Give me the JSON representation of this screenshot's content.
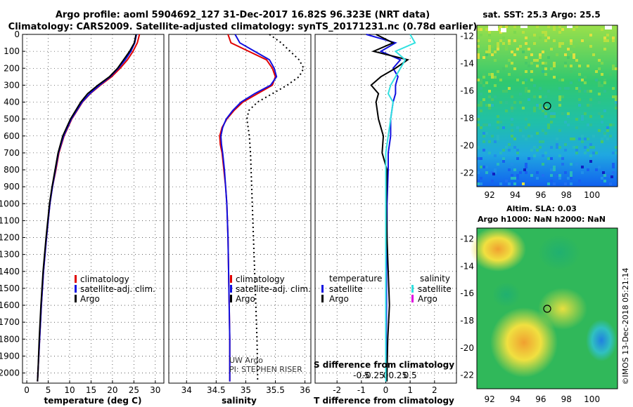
{
  "header": {
    "line1": "Argo profile: aoml 5904692_127 31-Dec-2017 16.82S 96.323E (NRT data)",
    "line2": "Climatology: CARS2009. Satellite-adjusted climatology: synTS_20171231.nc (0.78d earlier)"
  },
  "colors": {
    "climatology": "#e00000",
    "satellite": "#1010e0",
    "argo": "#000000",
    "satellite_salinity": "#30e0e0",
    "argo_salinity": "#e000e0"
  },
  "chart_data": [
    {
      "id": "temperature",
      "type": "line",
      "xlabel": "temperature (deg C)",
      "ylabel": "",
      "xlim": [
        -1,
        32
      ],
      "ylim": [
        2060,
        0
      ],
      "xticks": [
        "0",
        "5",
        "10",
        "15",
        "20",
        "25",
        "30"
      ],
      "yticks": [
        "0",
        "100",
        "200",
        "300",
        "400",
        "500",
        "600",
        "700",
        "800",
        "900",
        "1000",
        "1100",
        "1200",
        "1300",
        "1400",
        "1500",
        "1600",
        "1700",
        "1800",
        "1900",
        "2000"
      ],
      "depth": [
        0,
        50,
        100,
        150,
        200,
        250,
        300,
        350,
        400,
        500,
        600,
        700,
        800,
        900,
        1000,
        1200,
        1400,
        1600,
        1800,
        2000,
        2050
      ],
      "series": [
        {
          "name": "climatology",
          "values": [
            26.3,
            25.8,
            24.8,
            23.5,
            21.8,
            19.8,
            17.2,
            14.8,
            13.0,
            10.5,
            8.7,
            7.5,
            6.8,
            6.0,
            5.4,
            4.6,
            3.9,
            3.4,
            3.0,
            2.6,
            2.5
          ]
        },
        {
          "name": "satellite-adj. clim.",
          "values": [
            25.6,
            25.2,
            24.3,
            23.0,
            21.4,
            19.5,
            17.0,
            14.7,
            12.9,
            10.4,
            8.6,
            7.4,
            6.7,
            6.0,
            5.4,
            4.6,
            3.9,
            3.4,
            3.0,
            2.6,
            2.5
          ]
        },
        {
          "name": "Argo",
          "values": [
            25.5,
            25.1,
            24.0,
            22.6,
            21.2,
            19.3,
            16.6,
            14.2,
            12.6,
            10.2,
            8.4,
            7.3,
            6.6,
            5.9,
            5.3,
            4.5,
            3.8,
            3.3,
            2.9,
            2.6,
            2.5
          ]
        }
      ],
      "legend": [
        "climatology",
        "satellite-adj. clim.",
        "Argo"
      ]
    },
    {
      "id": "salinity",
      "type": "line",
      "xlabel": "salinity",
      "xlim": [
        33.7,
        36.1
      ],
      "ylim": [
        2060,
        0
      ],
      "xticks": [
        "34",
        "34.5",
        "35",
        "35.5",
        "36"
      ],
      "depth": [
        0,
        50,
        100,
        150,
        200,
        250,
        300,
        350,
        400,
        450,
        500,
        550,
        600,
        650,
        700,
        800,
        900,
        1000,
        1200,
        1400,
        1600,
        1800,
        2000,
        2050
      ],
      "series": [
        {
          "name": "climatology",
          "values": [
            34.7,
            34.75,
            35.05,
            35.35,
            35.45,
            35.5,
            35.45,
            35.2,
            34.95,
            34.8,
            34.68,
            34.6,
            34.56,
            34.57,
            34.6,
            34.63,
            34.66,
            34.68,
            34.7,
            34.71,
            34.72,
            34.73,
            34.73,
            34.73
          ]
        },
        {
          "name": "satellite-adj. clim.",
          "values": [
            34.82,
            34.9,
            35.15,
            35.4,
            35.48,
            35.52,
            35.42,
            35.15,
            34.92,
            34.78,
            34.67,
            34.61,
            34.58,
            34.59,
            34.61,
            34.64,
            34.66,
            34.68,
            34.7,
            34.71,
            34.72,
            34.73,
            34.73,
            34.73
          ]
        },
        {
          "name": "Argo (dotted)",
          "values": [
            35.4,
            35.6,
            35.75,
            35.9,
            35.98,
            35.9,
            35.7,
            35.45,
            35.2,
            35.05,
            35.02,
            35.04,
            35.06,
            35.07,
            35.08,
            35.09,
            35.1,
            35.11,
            35.13,
            35.15,
            35.17,
            35.19,
            35.2,
            35.2
          ]
        }
      ],
      "legend": [
        "climatology",
        "satellite-adj. clim.",
        "Argo"
      ],
      "annotations": [
        "UW Argo",
        "PI: STEPHEN RISER"
      ]
    },
    {
      "id": "difference",
      "type": "line",
      "xlabel": "T difference from climatology",
      "top_label": "S difference from climatology",
      "xlim": [
        -2.9,
        2.9
      ],
      "ylim": [
        2060,
        0
      ],
      "xticks": [
        "-2",
        "-1",
        "0",
        "1",
        "2"
      ],
      "sticks": [
        "-0.5",
        "-0.25",
        "0",
        "0.25",
        "0.5"
      ],
      "depth": [
        0,
        50,
        100,
        150,
        200,
        250,
        300,
        350,
        400,
        500,
        600,
        700,
        800,
        1000,
        1200,
        1400,
        1600,
        1800,
        2000,
        2050
      ],
      "series": [
        {
          "name": "temperature satellite",
          "values": [
            -0.8,
            0.4,
            -0.2,
            0.6,
            0.3,
            0.5,
            0.4,
            0.4,
            0.3,
            0.2,
            0.2,
            0.1,
            0.1,
            0.05,
            0.05,
            0.03,
            0.03,
            0.02,
            0.02,
            0.02
          ]
        },
        {
          "name": "temperature Argo",
          "values": [
            -0.4,
            0.3,
            -0.5,
            0.9,
            0.4,
            -0.2,
            -0.6,
            -0.3,
            -0.4,
            -0.3,
            -0.1,
            -0.15,
            0.05,
            0.02,
            0.05,
            0.1,
            0.15,
            0.08,
            0.05,
            0.05
          ]
        },
        {
          "name": "salinity satellite",
          "values": [
            0.5,
            0.6,
            0.2,
            0.4,
            0.3,
            0.2,
            0.1,
            0.05,
            0.15,
            0.1,
            0.05,
            0.0,
            0.0,
            0.0,
            0.0,
            0.0,
            0.0,
            0.0,
            0.0,
            0.0
          ]
        }
      ],
      "legend_left_title": "temperature",
      "legend_right_title": "salinity",
      "legend": [
        "satellite",
        "Argo",
        "satellite",
        "Argo"
      ]
    },
    {
      "id": "sst_map",
      "type": "heatmap",
      "title": "sat. SST: 25.3 Argo: 25.5",
      "xticks": [
        "92",
        "94",
        "96",
        "98",
        "100"
      ],
      "yticks": [
        "-12",
        "-14",
        "-16",
        "-18",
        "-20",
        "-22"
      ],
      "xlim": [
        91,
        102
      ],
      "ylim": [
        -23,
        -11.2
      ],
      "argo_position": [
        96.323,
        -16.82
      ]
    },
    {
      "id": "sla_map",
      "type": "heatmap",
      "title_line1": "Altim. SLA: 0.03",
      "title_line2": "Argo h1000: NaN h2000: NaN",
      "xticks": [
        "92",
        "94",
        "96",
        "98",
        "100"
      ],
      "yticks": [
        "-12",
        "-14",
        "-16",
        "-18",
        "-20",
        "-22"
      ],
      "xlim": [
        91,
        102
      ],
      "ylim": [
        -23,
        -11.2
      ],
      "argo_position": [
        96.323,
        -16.82
      ]
    }
  ],
  "footer": {
    "side_text": "©IMOS 13-Dec-2018 05:21:14"
  }
}
